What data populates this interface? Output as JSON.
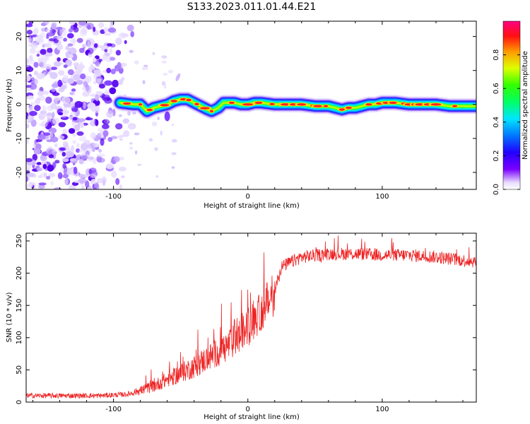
{
  "title": "S133.2023.011.01.44.E21",
  "chart_data": [
    {
      "type": "heatmap",
      "xlabel": "Height of straight line (km)",
      "ylabel": "Frequency (Hz)",
      "xlim": [
        -165,
        170
      ],
      "ylim": [
        -25,
        24.5
      ],
      "xticks": [
        -100,
        0,
        100
      ],
      "yticks": [
        -20,
        -10,
        0,
        10,
        20
      ],
      "colorbar": {
        "label": "Normalized spectral amplitude",
        "range": [
          0,
          1
        ],
        "ticks": [
          0.0,
          0.2,
          0.4,
          0.6,
          0.8
        ],
        "tick_labels": [
          "0.0",
          "0.2",
          "0.4",
          "0.6",
          "0.8"
        ],
        "colormap": "gist_rainbow",
        "low_color": "#ffffff",
        "high_color": "#ff0080"
      },
      "regions": [
        {
          "description_value": "scattered noise",
          "x_range": [
            -165,
            -95
          ],
          "amplitude_range": [
            0.05,
            0.3
          ]
        },
        {
          "description_value": "signal ridge",
          "x_range": [
            -95,
            170
          ],
          "amplitude_range": [
            0.3,
            1.0
          ]
        }
      ],
      "ridge": {
        "x": [
          -95,
          -85,
          -80,
          -75,
          -70,
          -65,
          -60,
          -55,
          -50,
          -45,
          -40,
          -35,
          -30,
          -27,
          -22,
          -18,
          -15,
          -10,
          -5,
          0,
          5,
          10,
          20,
          30,
          40,
          50,
          60,
          65,
          70,
          75,
          80,
          85,
          90,
          95,
          100,
          110,
          120,
          130,
          140,
          150,
          160,
          170
        ],
        "y": [
          0.5,
          0.0,
          0.0,
          -2.0,
          -1.0,
          -0.5,
          0.0,
          1.0,
          1.5,
          1.5,
          0.5,
          -0.5,
          -1.5,
          -2.0,
          -1.0,
          0.5,
          0.5,
          0.5,
          0.0,
          0.0,
          0.5,
          0.5,
          0.0,
          0.0,
          0.0,
          -0.5,
          -0.5,
          -1.0,
          -1.5,
          -1.0,
          -1.0,
          -0.5,
          0.0,
          0.0,
          0.5,
          0.5,
          0.0,
          0.0,
          0.0,
          -0.5,
          -0.5,
          -0.5
        ]
      }
    },
    {
      "type": "line",
      "xlabel": "Height of straight line (km)",
      "ylabel": "SNR (10 * v/v)",
      "xlim": [
        -165,
        170
      ],
      "ylim": [
        0,
        262
      ],
      "xticks": [
        -100,
        0,
        100
      ],
      "yticks": [
        0,
        50,
        100,
        150,
        200,
        250
      ],
      "color": "#ee2222",
      "series": [
        {
          "trend_x": [
            -165,
            -140,
            -110,
            -90,
            -80,
            -70,
            -60,
            -50,
            -40,
            -30,
            -20,
            -10,
            0,
            10,
            20,
            25,
            40,
            60,
            80,
            100,
            120,
            140,
            160,
            170
          ],
          "trend_y": [
            10,
            10,
            10,
            12,
            18,
            25,
            35,
            45,
            55,
            68,
            80,
            95,
            115,
            140,
            170,
            210,
            225,
            230,
            230,
            228,
            228,
            225,
            220,
            218
          ]
        }
      ]
    }
  ]
}
